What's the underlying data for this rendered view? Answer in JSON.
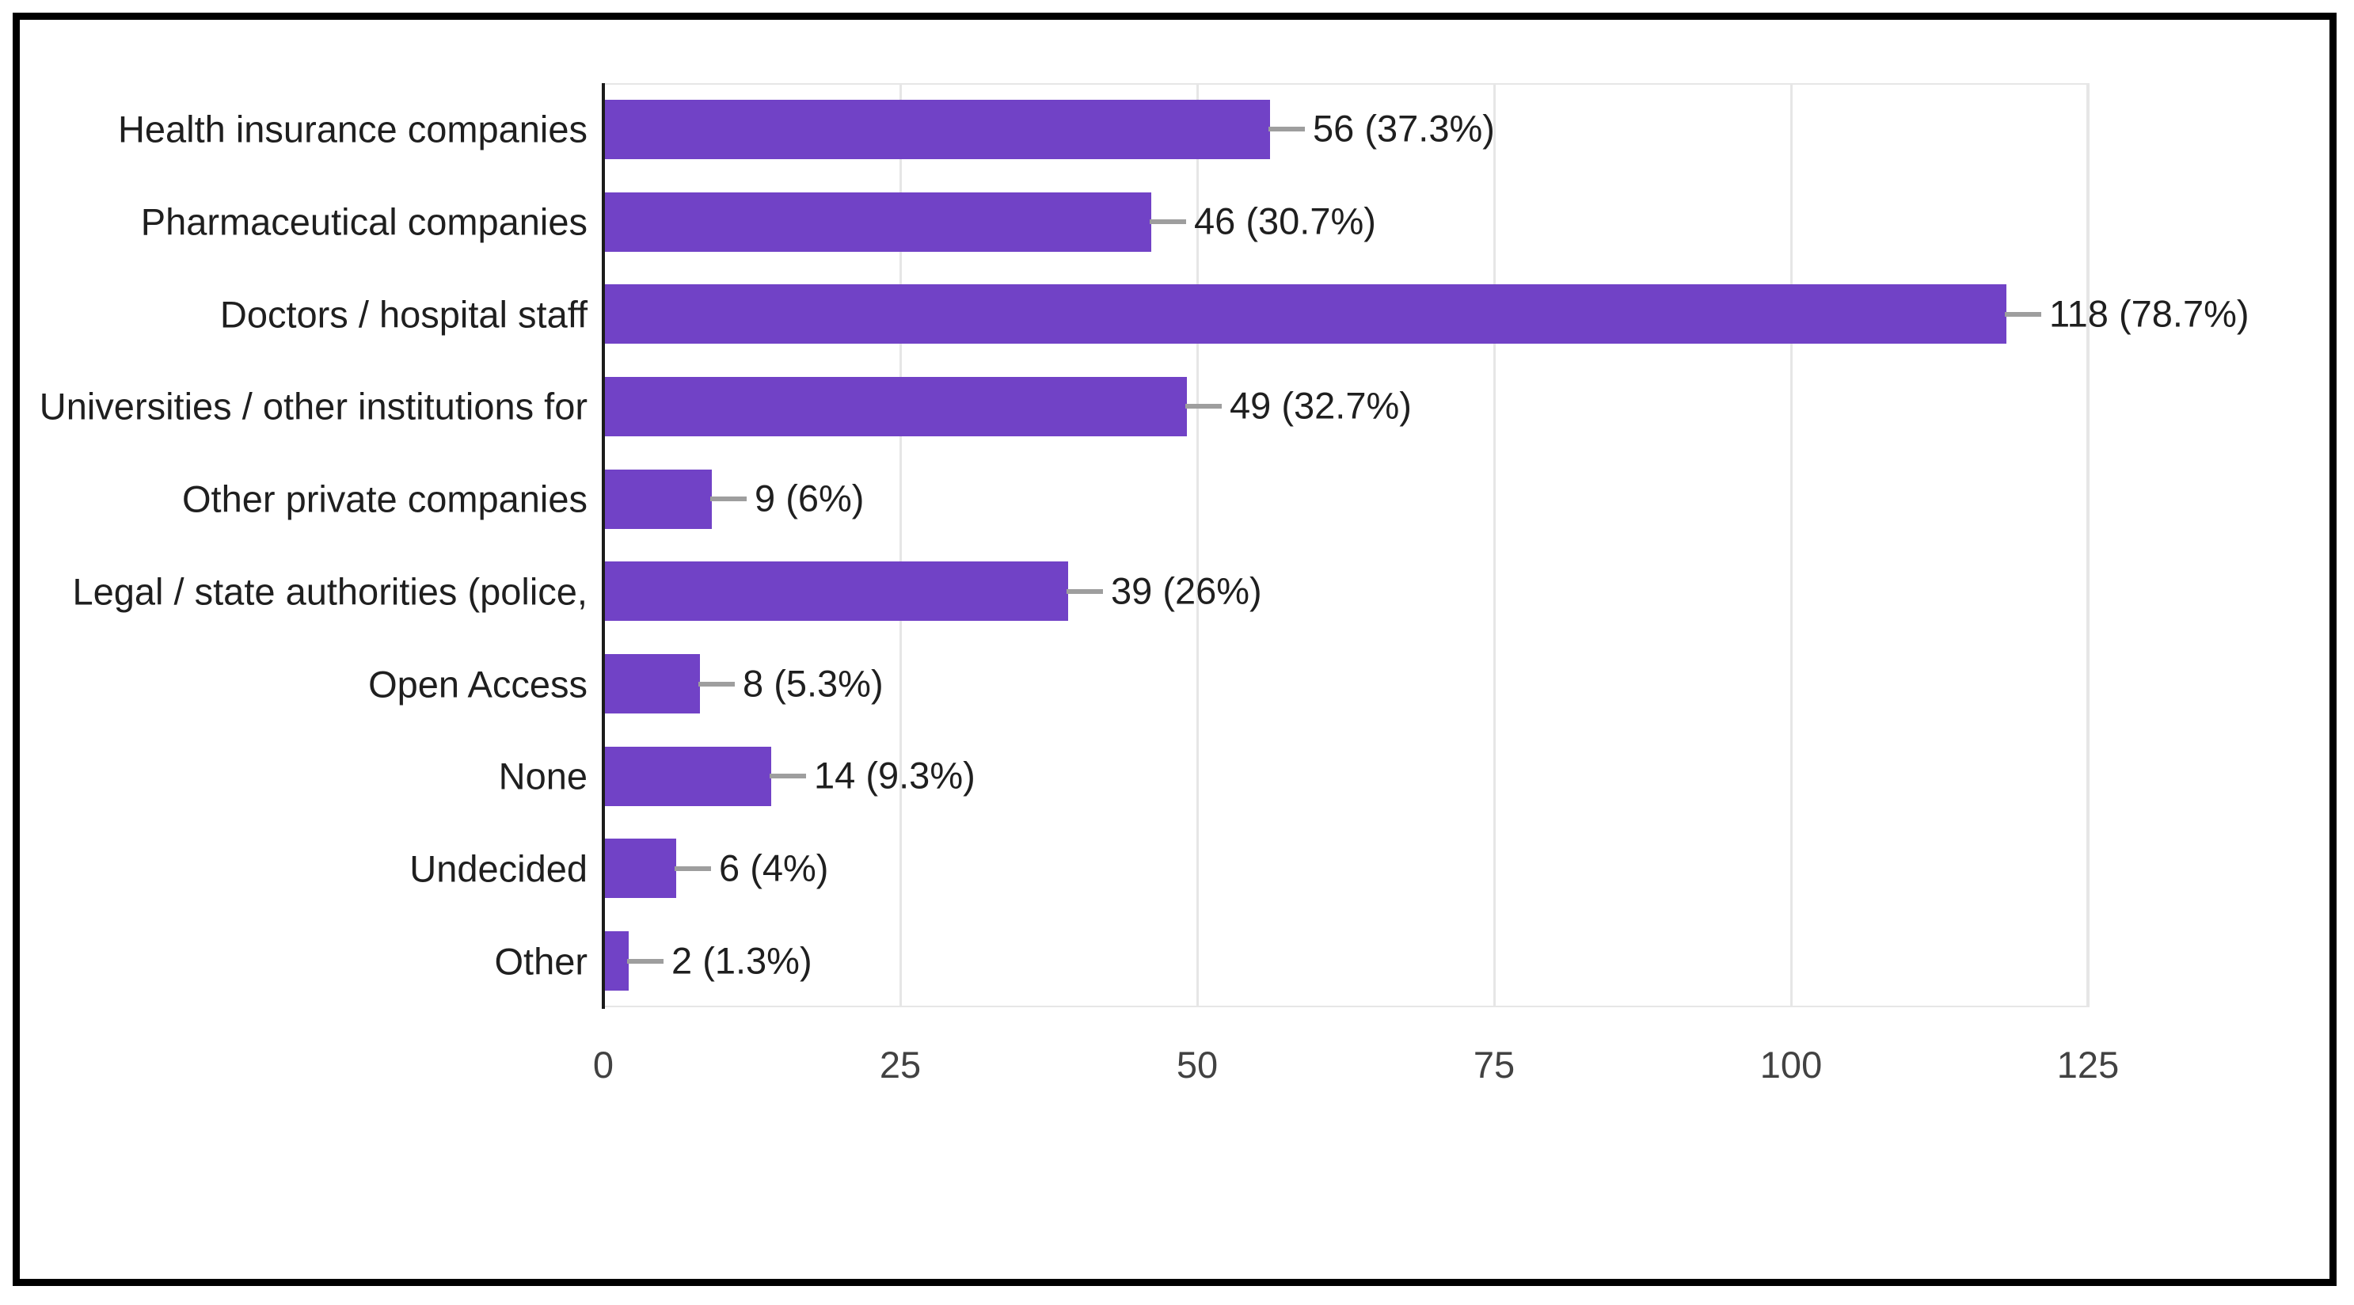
{
  "chart_data": {
    "type": "bar",
    "orientation": "horizontal",
    "title": "",
    "categories": [
      "Health insurance companies",
      "Pharmaceutical companies",
      "Doctors / hospital staff",
      "Universities / other institutions for",
      "Other private companies",
      "Legal / state authorities (police,",
      "Open Access",
      "None",
      "Undecided",
      "Other"
    ],
    "values": [
      56,
      46,
      118,
      49,
      9,
      39,
      8,
      14,
      6,
      2
    ],
    "percentages": [
      "37.3%",
      "30.7%",
      "78.7%",
      "32.7%",
      "6%",
      "26%",
      "5.3%",
      "9.3%",
      "4%",
      "1.3%"
    ],
    "value_labels": [
      "56 (37.3%)",
      "46 (30.7%)",
      "118 (78.7%)",
      "49 (32.7%)",
      "9 (6%)",
      "39 (26%)",
      "8 (5.3%)",
      "14 (9.3%)",
      "6 (4%)",
      "2 (1.3%)"
    ],
    "x_ticks": [
      "0",
      "25",
      "50",
      "75",
      "100",
      "125"
    ],
    "xlim": [
      0,
      125
    ],
    "xlabel": "",
    "ylabel": "",
    "grid": true,
    "legend": "none",
    "bar_color": "#7142C6",
    "whisker_color": "#9e9e9e",
    "gridline_color": "#e6e6e6",
    "axis_line_color": "#1b1b1b",
    "label_color": "#1f1f1f",
    "tick_color": "#424242",
    "frame_color": "#000000"
  }
}
